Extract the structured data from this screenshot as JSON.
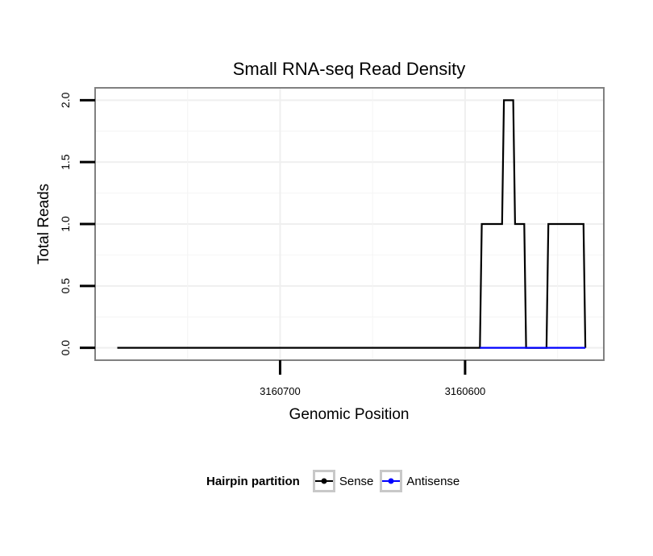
{
  "chart_data": {
    "type": "line",
    "title": "Small RNA-seq Read Density",
    "xlabel": "Genomic Position",
    "ylabel": "Total Reads",
    "x_reversed": true,
    "xlim": [
      3160800,
      3160525
    ],
    "ylim": [
      -0.1,
      2.1
    ],
    "xticks": [
      3160700,
      3160600
    ],
    "xtick_labels": [
      "3160700",
      "3160600"
    ],
    "yticks": [
      0,
      0.5,
      1,
      1.5,
      2
    ],
    "ytick_labels": [
      "0.0",
      "0.5",
      "1.0",
      "1.5",
      "2.0"
    ],
    "series": [
      {
        "name": "Sense",
        "color": "#000000",
        "x": [
          3160788,
          3160592,
          3160591,
          3160580,
          3160579,
          3160574,
          3160573,
          3160568,
          3160567,
          3160556,
          3160555,
          3160554,
          3160553,
          3160536,
          3160535
        ],
        "y": [
          0,
          0,
          1,
          1,
          2,
          2,
          1,
          1,
          0,
          0,
          1,
          1,
          1,
          1,
          0
        ]
      },
      {
        "name": "Antisense",
        "color": "#0000ff",
        "x": [
          3160592,
          3160535
        ],
        "y": [
          0,
          0
        ]
      }
    ]
  },
  "legend": {
    "title": "Hairpin partition",
    "items": [
      {
        "label": "Sense",
        "color": "#000000"
      },
      {
        "label": "Antisense",
        "color": "#0000ff"
      }
    ]
  }
}
